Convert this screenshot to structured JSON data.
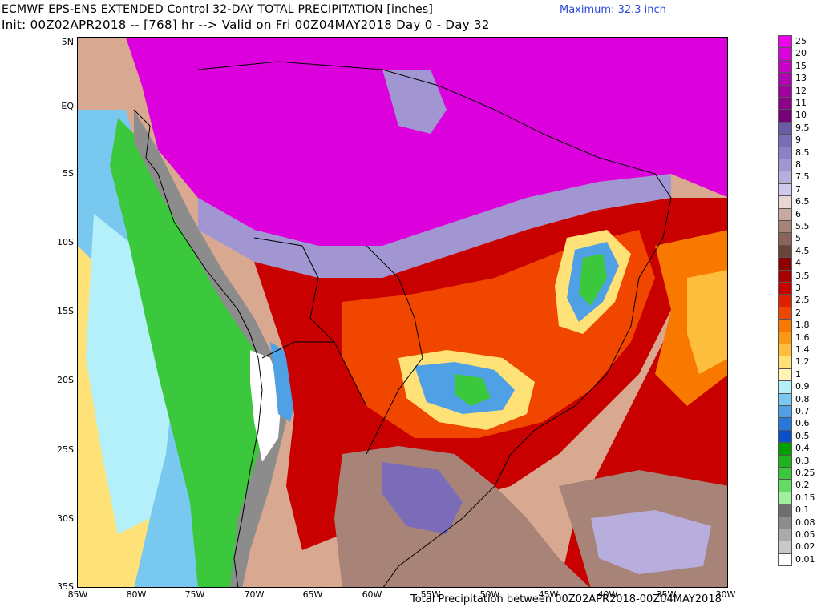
{
  "header": {
    "title_line1": "ECMWF EPS-ENS EXTENDED Control 32-DAY TOTAL PRECIPITATION [inches]",
    "title_line2": "Init: 00Z02APR2018 -- [768] hr --> Valid on Fri 00Z04MAY2018  Day 0 - Day 32",
    "maximum": "Maximum: 32.3 inch"
  },
  "footer": {
    "text": "Total Precipitation between 00Z02APR2018-00Z04MAY2018"
  },
  "axes": {
    "y_labels": [
      "5N",
      "EQ",
      "5S",
      "10S",
      "15S",
      "20S",
      "25S",
      "30S",
      "35S"
    ],
    "x_labels": [
      "85W",
      "80W",
      "75W",
      "70W",
      "65W",
      "60W",
      "55W",
      "50W",
      "45W",
      "40W",
      "35W",
      "30W"
    ]
  },
  "legend": {
    "levels": [
      {
        "label": "25",
        "color": "#f000f0"
      },
      {
        "label": "20",
        "color": "#dc00dc"
      },
      {
        "label": "15",
        "color": "#c800c8"
      },
      {
        "label": "13",
        "color": "#b400b4"
      },
      {
        "label": "12",
        "color": "#a000a0"
      },
      {
        "label": "11",
        "color": "#8c008c"
      },
      {
        "label": "10",
        "color": "#780078"
      },
      {
        "label": "9.5",
        "color": "#6a5aa8"
      },
      {
        "label": "9",
        "color": "#7a6cb8"
      },
      {
        "label": "8.5",
        "color": "#8c80c6"
      },
      {
        "label": "8",
        "color": "#a296d2"
      },
      {
        "label": "7.5",
        "color": "#b8aede"
      },
      {
        "label": "7",
        "color": "#d2c8ec"
      },
      {
        "label": "6.5",
        "color": "#e8d6d2"
      },
      {
        "label": "6",
        "color": "#c8a8a0"
      },
      {
        "label": "5.5",
        "color": "#a88478"
      },
      {
        "label": "5",
        "color": "#8a6458"
      },
      {
        "label": "4.5",
        "color": "#6a4438"
      },
      {
        "label": "4",
        "color": "#8c0000"
      },
      {
        "label": "3.5",
        "color": "#a80000"
      },
      {
        "label": "3",
        "color": "#c80000"
      },
      {
        "label": "2.5",
        "color": "#e01e00"
      },
      {
        "label": "2",
        "color": "#f04600"
      },
      {
        "label": "1.8",
        "color": "#f87800"
      },
      {
        "label": "1.6",
        "color": "#fa9a14"
      },
      {
        "label": "1.4",
        "color": "#fcbe3c"
      },
      {
        "label": "1.2",
        "color": "#fee278"
      },
      {
        "label": "1",
        "color": "#fff4b4"
      },
      {
        "label": "0.9",
        "color": "#b4f0fa"
      },
      {
        "label": "0.8",
        "color": "#78c8f0"
      },
      {
        "label": "0.7",
        "color": "#50a0e6"
      },
      {
        "label": "0.6",
        "color": "#2878dc"
      },
      {
        "label": "0.5",
        "color": "#0a50c8"
      },
      {
        "label": "0.4",
        "color": "#00a000"
      },
      {
        "label": "0.3",
        "color": "#1eb41e"
      },
      {
        "label": "0.25",
        "color": "#3cc83c"
      },
      {
        "label": "0.2",
        "color": "#64dc64"
      },
      {
        "label": "0.15",
        "color": "#a0f0a0"
      },
      {
        "label": "0.1",
        "color": "#6e6e6e"
      },
      {
        "label": "0.08",
        "color": "#8c8c8c"
      },
      {
        "label": "0.05",
        "color": "#aaaaaa"
      },
      {
        "label": "0.02",
        "color": "#c8c8c8"
      },
      {
        "label": "0.01",
        "color": "#ffffff"
      }
    ]
  }
}
